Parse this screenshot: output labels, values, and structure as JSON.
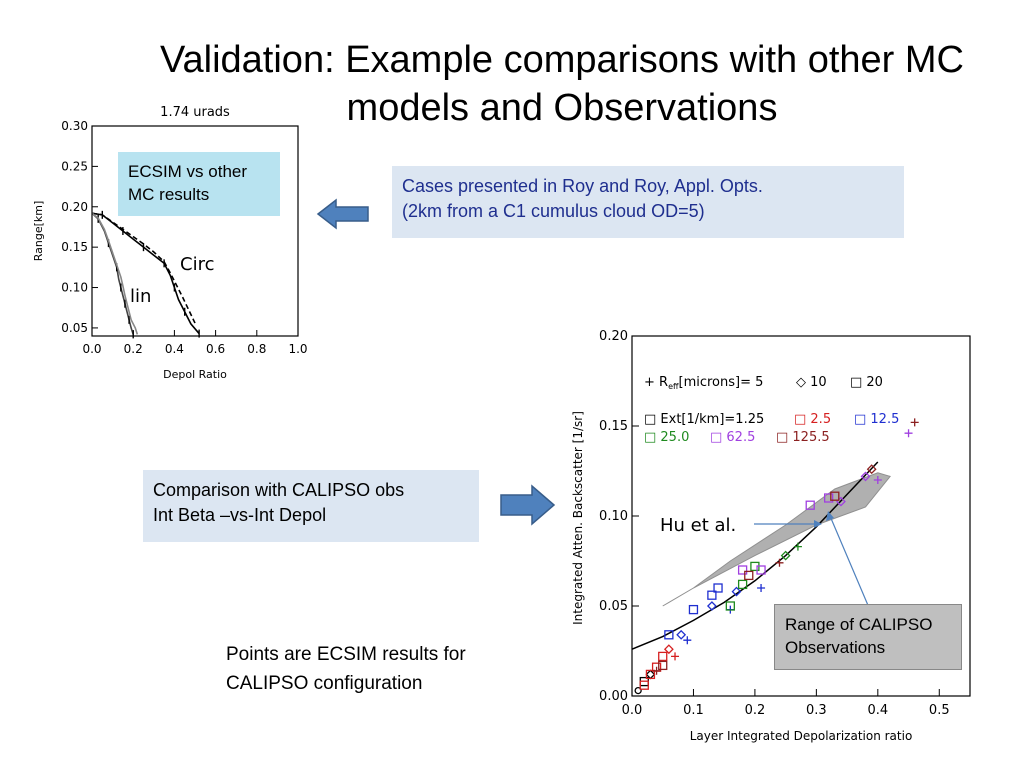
{
  "slide": {
    "title_line1": "Validation: Example comparisons with other MC",
    "title_line2": "models and Observations",
    "ecsim_box_line1": "ECSIM vs other",
    "ecsim_box_line2": "MC results",
    "cases_line1": "Cases presented in Roy and Roy, Appl. Opts.",
    "cases_line2": "(2km from a C1 cumulus cloud OD=5)",
    "calipso_line1": "Comparison with CALIPSO obs",
    "calipso_line2": "Int Beta –vs-Int Depol",
    "note_line1": "Points are ECSIM results for",
    "note_line2": "CALIPSO configuration",
    "hu_label": "Hu et al.",
    "range_line1": "Range of CALIPSO",
    "range_line2": "Observations",
    "arrow_color": "#4f81bd"
  },
  "chart_data": [
    {
      "type": "line",
      "title": "1.74 urads",
      "xlabel": "Depol Ratio",
      "ylabel": "Range[km]",
      "xlim": [
        0.0,
        1.0
      ],
      "ylim": [
        0.04,
        0.3
      ],
      "xticks": [
        "0.0",
        "0.2",
        "0.4",
        "0.6",
        "0.8",
        "1.0"
      ],
      "yticks": [
        "0.05",
        "0.10",
        "0.15",
        "0.20",
        "0.25",
        "0.30"
      ],
      "annotations": [
        "Circ",
        "lin"
      ],
      "series": [
        {
          "x": [
            0.0,
            0.05,
            0.1,
            0.15,
            0.2,
            0.25,
            0.3,
            0.35,
            0.38,
            0.4,
            0.42,
            0.45,
            0.48,
            0.52
          ],
          "y": [
            0.192,
            0.19,
            0.18,
            0.17,
            0.16,
            0.15,
            0.14,
            0.13,
            0.115,
            0.1,
            0.085,
            0.07,
            0.055,
            0.043
          ]
        },
        {
          "x": [
            0.0,
            0.05,
            0.1,
            0.15,
            0.2,
            0.25,
            0.3,
            0.35,
            0.38,
            0.41,
            0.44,
            0.47,
            0.5
          ],
          "y": [
            0.192,
            0.19,
            0.181,
            0.172,
            0.163,
            0.154,
            0.144,
            0.132,
            0.118,
            0.103,
            0.088,
            0.072,
            0.056
          ]
        },
        {
          "x": [
            0.0,
            0.03,
            0.06,
            0.08,
            0.1,
            0.12,
            0.13,
            0.14,
            0.15,
            0.16,
            0.17,
            0.18,
            0.19,
            0.2
          ],
          "y": [
            0.192,
            0.185,
            0.17,
            0.155,
            0.14,
            0.125,
            0.11,
            0.1,
            0.09,
            0.08,
            0.07,
            0.06,
            0.05,
            0.042
          ]
        },
        {
          "x": [
            0.0,
            0.03,
            0.06,
            0.08,
            0.1,
            0.12,
            0.14,
            0.15,
            0.16,
            0.17,
            0.18,
            0.19,
            0.21,
            0.22
          ],
          "y": [
            0.192,
            0.186,
            0.172,
            0.158,
            0.143,
            0.128,
            0.113,
            0.102,
            0.09,
            0.08,
            0.07,
            0.06,
            0.05,
            0.042
          ]
        }
      ]
    },
    {
      "type": "scatter",
      "xlabel": "Layer Integrated Depolarization ratio",
      "ylabel": "Integrated Atten. Backscatter [1/sr]",
      "xlim": [
        0.0,
        0.55
      ],
      "ylim": [
        0.0,
        0.2
      ],
      "xticks": [
        "0.0",
        "0.1",
        "0.2",
        "0.3",
        "0.4",
        "0.5"
      ],
      "yticks": [
        "0.00",
        "0.05",
        "0.10",
        "0.15",
        "0.20"
      ],
      "legend": {
        "reff_prefix": "+ R",
        "reff_sub": "eff",
        "reff_rest": "[microns]= 5",
        "reff_10": "◇ 10",
        "reff_20": "□ 20",
        "ext_label": "□ Ext[1/km]=1.25",
        "ext": [
          {
            "label": "□ 2.5",
            "color": "#d62020"
          },
          {
            "label": "□ 12.5",
            "color": "#1f2fd0"
          },
          {
            "label": "□ 25.0",
            "color": "#1f8a1f"
          },
          {
            "label": "□ 62.5",
            "color": "#a040e0"
          },
          {
            "label": "□ 125.5",
            "color": "#8b2020"
          }
        ]
      },
      "range_band": {
        "x": [
          0.05,
          0.1,
          0.2,
          0.3,
          0.38,
          0.42,
          0.4,
          0.33,
          0.25,
          0.16,
          0.1,
          0.06,
          0.05
        ],
        "y": [
          0.05,
          0.06,
          0.078,
          0.095,
          0.105,
          0.122,
          0.124,
          0.115,
          0.095,
          0.075,
          0.06,
          0.052,
          0.05
        ]
      },
      "hu_curve": {
        "x": [
          0.0,
          0.05,
          0.1,
          0.15,
          0.2,
          0.25,
          0.3,
          0.35,
          0.4
        ],
        "y": [
          0.026,
          0.033,
          0.042,
          0.052,
          0.064,
          0.078,
          0.094,
          0.112,
          0.13
        ]
      },
      "points": [
        {
          "x": 0.01,
          "y": 0.003,
          "m": "o",
          "c": "#000000"
        },
        {
          "x": 0.02,
          "y": 0.008,
          "m": "s",
          "c": "#000000"
        },
        {
          "x": 0.03,
          "y": 0.012,
          "m": "d",
          "c": "#000000"
        },
        {
          "x": 0.02,
          "y": 0.006,
          "m": "s",
          "c": "#d62020"
        },
        {
          "x": 0.03,
          "y": 0.012,
          "m": "s",
          "c": "#d62020"
        },
        {
          "x": 0.04,
          "y": 0.016,
          "m": "s",
          "c": "#d62020"
        },
        {
          "x": 0.05,
          "y": 0.022,
          "m": "s",
          "c": "#d62020"
        },
        {
          "x": 0.06,
          "y": 0.026,
          "m": "d",
          "c": "#d62020"
        },
        {
          "x": 0.07,
          "y": 0.022,
          "m": "+",
          "c": "#d62020"
        },
        {
          "x": 0.04,
          "y": 0.014,
          "m": "+",
          "c": "#8b2020"
        },
        {
          "x": 0.05,
          "y": 0.017,
          "m": "s",
          "c": "#8b2020"
        },
        {
          "x": 0.06,
          "y": 0.034,
          "m": "s",
          "c": "#1f2fd0"
        },
        {
          "x": 0.08,
          "y": 0.034,
          "m": "d",
          "c": "#1f2fd0"
        },
        {
          "x": 0.1,
          "y": 0.048,
          "m": "s",
          "c": "#1f2fd0"
        },
        {
          "x": 0.09,
          "y": 0.031,
          "m": "+",
          "c": "#1f2fd0"
        },
        {
          "x": 0.13,
          "y": 0.056,
          "m": "s",
          "c": "#1f2fd0"
        },
        {
          "x": 0.14,
          "y": 0.06,
          "m": "s",
          "c": "#1f2fd0"
        },
        {
          "x": 0.13,
          "y": 0.05,
          "m": "d",
          "c": "#1f2fd0"
        },
        {
          "x": 0.16,
          "y": 0.048,
          "m": "+",
          "c": "#1f2fd0"
        },
        {
          "x": 0.17,
          "y": 0.058,
          "m": "d",
          "c": "#1f2fd0"
        },
        {
          "x": 0.21,
          "y": 0.06,
          "m": "+",
          "c": "#1f2fd0"
        },
        {
          "x": 0.16,
          "y": 0.05,
          "m": "s",
          "c": "#1f8a1f"
        },
        {
          "x": 0.18,
          "y": 0.062,
          "m": "s",
          "c": "#1f8a1f"
        },
        {
          "x": 0.2,
          "y": 0.072,
          "m": "s",
          "c": "#1f8a1f"
        },
        {
          "x": 0.25,
          "y": 0.078,
          "m": "d",
          "c": "#1f8a1f"
        },
        {
          "x": 0.27,
          "y": 0.083,
          "m": "+",
          "c": "#1f8a1f"
        },
        {
          "x": 0.18,
          "y": 0.07,
          "m": "s",
          "c": "#a040e0"
        },
        {
          "x": 0.21,
          "y": 0.07,
          "m": "s",
          "c": "#a040e0"
        },
        {
          "x": 0.29,
          "y": 0.106,
          "m": "s",
          "c": "#a040e0"
        },
        {
          "x": 0.32,
          "y": 0.11,
          "m": "s",
          "c": "#a040e0"
        },
        {
          "x": 0.34,
          "y": 0.108,
          "m": "d",
          "c": "#a040e0"
        },
        {
          "x": 0.38,
          "y": 0.122,
          "m": "d",
          "c": "#a040e0"
        },
        {
          "x": 0.4,
          "y": 0.12,
          "m": "+",
          "c": "#a040e0"
        },
        {
          "x": 0.45,
          "y": 0.146,
          "m": "+",
          "c": "#a040e0"
        },
        {
          "x": 0.19,
          "y": 0.067,
          "m": "s",
          "c": "#8b2020"
        },
        {
          "x": 0.24,
          "y": 0.074,
          "m": "+",
          "c": "#8b2020"
        },
        {
          "x": 0.33,
          "y": 0.111,
          "m": "s",
          "c": "#8b2020"
        },
        {
          "x": 0.39,
          "y": 0.126,
          "m": "d",
          "c": "#8b2020"
        },
        {
          "x": 0.46,
          "y": 0.152,
          "m": "+",
          "c": "#8b2020"
        }
      ]
    }
  ]
}
